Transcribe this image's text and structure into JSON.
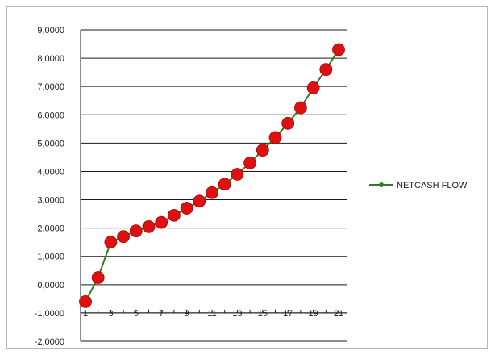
{
  "chart_data": {
    "type": "line",
    "title": "",
    "xlabel": "",
    "ylabel": "",
    "ylim": [
      -2,
      9
    ],
    "y_ticks": [
      -2,
      -1,
      0,
      1,
      2,
      3,
      4,
      5,
      6,
      7,
      8,
      9
    ],
    "y_tick_labels": [
      "-2,0000",
      "-1,0000",
      "0,0000",
      "1,0000",
      "2,0000",
      "3,0000",
      "4,0000",
      "5,0000",
      "6,0000",
      "7,0000",
      "8,0000",
      "9,0000"
    ],
    "x_tick_labels": [
      "1",
      "3",
      "5",
      "7",
      "9",
      "11",
      "13",
      "15",
      "17",
      "19",
      "21"
    ],
    "categories": [
      "1",
      "2",
      "3",
      "4",
      "5",
      "6",
      "7",
      "8",
      "9",
      "10",
      "11",
      "12",
      "13",
      "14",
      "15",
      "16",
      "17",
      "18",
      "19",
      "20",
      "21"
    ],
    "grid": true,
    "legend_position": "right",
    "series": [
      {
        "name": "NETCASH FLOW",
        "color": "#2e7d1f",
        "marker_color": "#dd1111",
        "values": [
          -0.6,
          0.25,
          1.5,
          1.7,
          1.9,
          2.05,
          2.2,
          2.45,
          2.7,
          2.95,
          3.25,
          3.55,
          3.9,
          4.3,
          4.75,
          5.2,
          5.7,
          6.25,
          6.95,
          7.6,
          8.3
        ]
      }
    ]
  }
}
